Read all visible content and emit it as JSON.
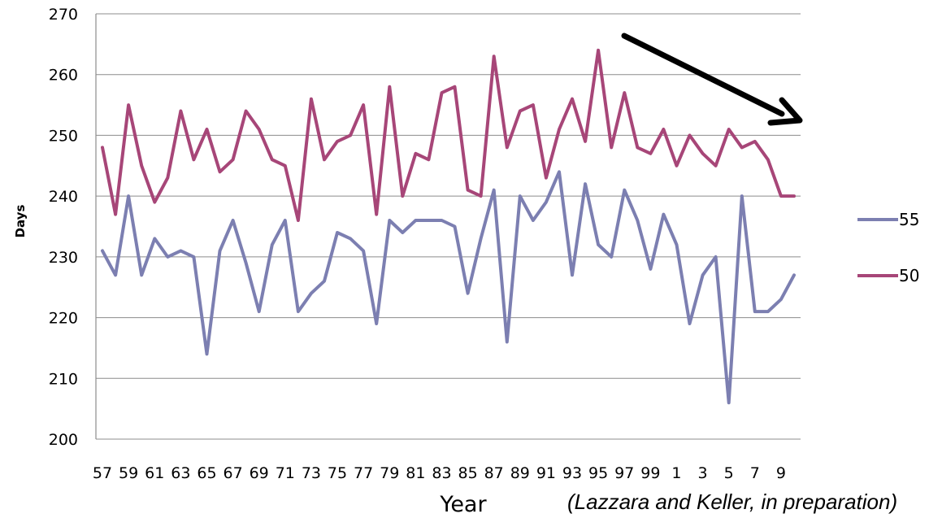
{
  "chart_data": {
    "type": "line",
    "xlabel": "Year",
    "ylabel": "Days",
    "ylim": [
      200,
      270
    ],
    "yticks": [
      200,
      210,
      220,
      230,
      240,
      250,
      260,
      270
    ],
    "x": [
      "57",
      "58",
      "59",
      "60",
      "61",
      "62",
      "63",
      "64",
      "65",
      "66",
      "67",
      "68",
      "69",
      "70",
      "71",
      "72",
      "73",
      "74",
      "75",
      "76",
      "77",
      "78",
      "79",
      "80",
      "81",
      "82",
      "83",
      "84",
      "85",
      "86",
      "87",
      "88",
      "89",
      "90",
      "91",
      "92",
      "93",
      "94",
      "95",
      "96",
      "97",
      "98",
      "99",
      "0",
      "1",
      "2",
      "3",
      "4",
      "5",
      "6",
      "7",
      "8",
      "9",
      "10"
    ],
    "xtick_labels": [
      "57",
      "59",
      "61",
      "63",
      "65",
      "67",
      "69",
      "71",
      "73",
      "75",
      "77",
      "79",
      "81",
      "83",
      "85",
      "87",
      "89",
      "91",
      "93",
      "95",
      "97",
      "99",
      "1",
      "3",
      "5",
      "7",
      "9"
    ],
    "grid": true,
    "legend_position": "right",
    "series": [
      {
        "name": "55",
        "color": "#7c7fb1",
        "values": [
          231,
          227,
          240,
          227,
          233,
          230,
          231,
          230,
          214,
          231,
          236,
          229,
          221,
          232,
          236,
          221,
          224,
          226,
          234,
          233,
          231,
          219,
          236,
          234,
          236,
          236,
          236,
          235,
          224,
          233,
          241,
          216,
          240,
          236,
          239,
          244,
          227,
          242,
          232,
          230,
          241,
          236,
          228,
          237,
          232,
          219,
          227,
          230,
          206,
          240,
          221,
          221,
          223,
          227
        ]
      },
      {
        "name": "50",
        "color": "#a74678",
        "values": [
          248,
          237,
          255,
          245,
          239,
          243,
          254,
          246,
          251,
          244,
          246,
          254,
          251,
          246,
          245,
          236,
          256,
          246,
          249,
          250,
          255,
          237,
          258,
          240,
          247,
          246,
          257,
          258,
          241,
          240,
          263,
          248,
          254,
          255,
          243,
          251,
          256,
          249,
          264,
          248,
          257,
          248,
          247,
          251,
          245,
          250,
          247,
          245,
          251,
          248,
          249,
          246,
          240,
          240
        ]
      }
    ],
    "annotations": [
      "(Lazzara and Keller, in preparation)"
    ]
  },
  "arrow_color": "#000000"
}
